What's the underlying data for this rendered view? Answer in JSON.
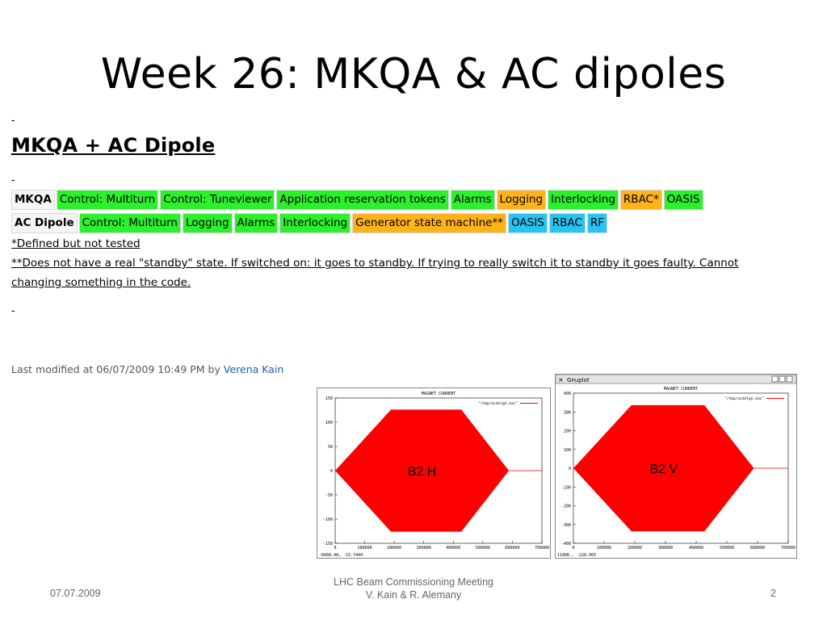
{
  "slide": {
    "title": "Week 26: MKQA & AC dipoles",
    "dash": "-",
    "heading": "MKQA + AC Dipole",
    "rows": [
      {
        "header": "MKQA",
        "items": [
          {
            "label": "Control: Multiturn",
            "color": "green"
          },
          {
            "label": "Control: Tuneviewer",
            "color": "green"
          },
          {
            "label": "Application reservation tokens",
            "color": "green"
          },
          {
            "label": "Alarms",
            "color": "green"
          },
          {
            "label": "Logging",
            "color": "orange"
          },
          {
            "label": "Interlocking",
            "color": "green"
          },
          {
            "label": "RBAC*",
            "color": "orange"
          },
          {
            "label": "OASIS",
            "color": "green"
          }
        ]
      },
      {
        "header": "AC Dipole",
        "items": [
          {
            "label": "Control: Multiturn",
            "color": "green"
          },
          {
            "label": "Logging",
            "color": "green"
          },
          {
            "label": "Alarms",
            "color": "green"
          },
          {
            "label": "Interlocking",
            "color": "green"
          },
          {
            "label": "Generator state machine**",
            "color": "orange"
          },
          {
            "label": "OASIS",
            "color": "blue"
          },
          {
            "label": "RBAC",
            "color": "blue"
          },
          {
            "label": "RF",
            "color": "blue"
          }
        ]
      }
    ],
    "note1": "*Defined but not tested",
    "note2": "**Does not have a real \"standby\" state. If switched on: it goes to standby. If trying to really switch it to standby it goes faulty. Cannot",
    "note3": "changing something in the code.",
    "modified_prefix": "Last modified at 06/07/2009 10:49 PM  by",
    "modified_author": "Verena Kain",
    "plots": [
      {
        "label": "B2 H",
        "plot_title": "MAGNET CURRENT",
        "legend": "\"/tmp/acdolgh.eac\"",
        "coords": "-6668.48, -15.7444",
        "window_title": "",
        "yticks": [
          "150",
          "100",
          "50",
          "0",
          "-50",
          "-100",
          "-150"
        ],
        "xticks": [
          "0",
          "100000",
          "200000",
          "300000",
          "400000",
          "500000",
          "600000",
          "700000"
        ]
      },
      {
        "label": "B2 V",
        "plot_title": "MAGNET CURRENT",
        "legend": "\"/tmp/acdolgn.eac\"",
        "coords": "11908., -228.065",
        "window_title": "Gnuplot",
        "yticks": [
          "400",
          "300",
          "200",
          "100",
          "0",
          "-100",
          "-200",
          "-300",
          "-400"
        ],
        "xticks": [
          "0",
          "100000",
          "200000",
          "300000",
          "400000",
          "500000",
          "600000",
          "700000"
        ]
      }
    ],
    "footer": {
      "date": "07.07.2009",
      "meeting": "LHC Beam Commissioning Meeting",
      "authors": "V. Kain & R. Alemany",
      "page": "2"
    },
    "colors": {
      "green": "#2cf02c",
      "orange": "#ffb21a",
      "blue": "#26c4f2",
      "signal": "#ff0000"
    }
  }
}
